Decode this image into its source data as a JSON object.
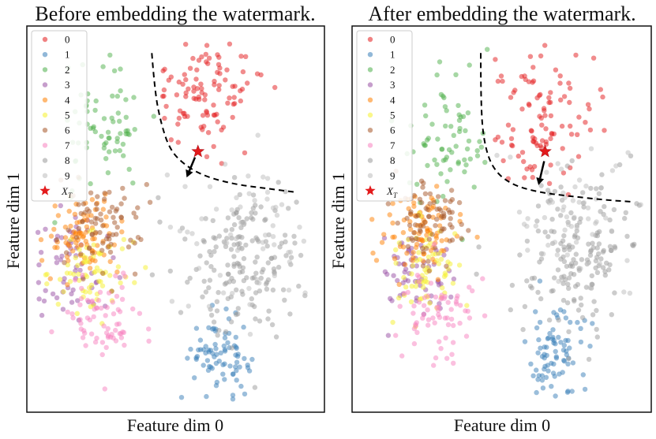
{
  "chart_data": [
    {
      "type": "scatter",
      "title": "Before embedding the watermark.",
      "xlabel": "Feature dim 0",
      "ylabel": "Feature dim 1",
      "legend": {
        "placement": "top-left",
        "entries": [
          "0",
          "1",
          "2",
          "3",
          "4",
          "5",
          "6",
          "7",
          "8",
          "9"
        ],
        "marker_label": "X_T",
        "marker_label_main": "X",
        "marker_label_sub": "T"
      },
      "grid": false,
      "xlim": [
        0,
        100
      ],
      "ylim": [
        0,
        100
      ],
      "boundary": [
        [
          42,
          93
        ],
        [
          43,
          83
        ],
        [
          45,
          75
        ],
        [
          48,
          68
        ],
        [
          53,
          64
        ],
        [
          60,
          61
        ],
        [
          70,
          59
        ],
        [
          80,
          58
        ],
        [
          90,
          57
        ]
      ],
      "watermark_point": [
        57.5,
        67.5
      ],
      "arrow": {
        "from": [
          56.5,
          66.0
        ],
        "to": [
          53.7,
          60.8
        ]
      },
      "series": [
        {
          "label": "0",
          "color": "#e41a1c",
          "center": [
            60,
            83
          ],
          "spread": [
            10,
            7
          ],
          "n": 100,
          "region": "right_of_boundary"
        },
        {
          "label": "1",
          "color": "#377eb8",
          "center": [
            65,
            14
          ],
          "spread": [
            5,
            5
          ],
          "n": 80
        },
        {
          "label": "2",
          "color": "#4daf4a",
          "center": [
            25,
            72
          ],
          "spread": [
            8,
            8
          ],
          "n": 70
        },
        {
          "label": "3",
          "color": "#984ea3",
          "center": [
            16,
            38
          ],
          "spread": [
            7,
            7
          ],
          "n": 60
        },
        {
          "label": "4",
          "color": "#ff7f00",
          "center": [
            19,
            46
          ],
          "spread": [
            6,
            5
          ],
          "n": 85
        },
        {
          "label": "5",
          "color": "#f5f02a",
          "center": [
            22,
            36
          ],
          "spread": [
            7,
            5
          ],
          "n": 65
        },
        {
          "label": "6",
          "color": "#a65628",
          "center": [
            25,
            49
          ],
          "spread": [
            7,
            6
          ],
          "n": 75
        },
        {
          "label": "7",
          "color": "#f781bf",
          "center": [
            26,
            24
          ],
          "spread": [
            7,
            6
          ],
          "n": 70
        },
        {
          "label": "8",
          "color": "#999999",
          "center": [
            74,
            40
          ],
          "spread": [
            10,
            10
          ],
          "n": 170
        },
        {
          "label": "9",
          "color": "#bcbcbc",
          "center": [
            72,
            45
          ],
          "spread": [
            10,
            10
          ],
          "n": 60
        }
      ]
    },
    {
      "type": "scatter",
      "title": "After embedding the watermark.",
      "xlabel": "Feature dim 0",
      "ylabel": "Feature dim 1",
      "legend": {
        "placement": "top-left",
        "entries": [
          "0",
          "1",
          "2",
          "3",
          "4",
          "5",
          "6",
          "7",
          "8",
          "9"
        ],
        "marker_label": "X_T",
        "marker_label_main": "X",
        "marker_label_sub": "T"
      },
      "grid": false,
      "xlim": [
        0,
        100
      ],
      "ylim": [
        0,
        100
      ],
      "boundary": [
        [
          43,
          93
        ],
        [
          43,
          80
        ],
        [
          44,
          70
        ],
        [
          47,
          63
        ],
        [
          53,
          59
        ],
        [
          62,
          57
        ],
        [
          72,
          56
        ],
        [
          84,
          55
        ],
        [
          93,
          54.5
        ]
      ],
      "watermark_point": [
        64.5,
        67.5
      ],
      "arrow": {
        "from": [
          64.2,
          65.0
        ],
        "to": [
          62.3,
          58.8
        ]
      },
      "series": [
        {
          "label": "0",
          "color": "#e41a1c",
          "center": [
            63,
            77
          ],
          "spread": [
            9,
            9
          ],
          "n": 100,
          "region": "right_of_boundary"
        },
        {
          "label": "1",
          "color": "#377eb8",
          "center": [
            68,
            15
          ],
          "spread": [
            5,
            6
          ],
          "n": 80
        },
        {
          "label": "2",
          "color": "#4daf4a",
          "center": [
            31,
            72
          ],
          "spread": [
            7,
            9
          ],
          "n": 70
        },
        {
          "label": "3",
          "color": "#984ea3",
          "center": [
            21,
            37
          ],
          "spread": [
            6,
            7
          ],
          "n": 60
        },
        {
          "label": "4",
          "color": "#ff7f00",
          "center": [
            23,
            47
          ],
          "spread": [
            6,
            5
          ],
          "n": 85
        },
        {
          "label": "5",
          "color": "#f5f02a",
          "center": [
            26,
            36
          ],
          "spread": [
            6,
            6
          ],
          "n": 65
        },
        {
          "label": "6",
          "color": "#a65628",
          "center": [
            27,
            50
          ],
          "spread": [
            6,
            6
          ],
          "n": 75
        },
        {
          "label": "7",
          "color": "#f781bf",
          "center": [
            28,
            24
          ],
          "spread": [
            6,
            6
          ],
          "n": 70
        },
        {
          "label": "8",
          "color": "#999999",
          "center": [
            76,
            42
          ],
          "spread": [
            10,
            10
          ],
          "n": 170
        },
        {
          "label": "9",
          "color": "#bcbcbc",
          "center": [
            73,
            48
          ],
          "spread": [
            10,
            10
          ],
          "n": 60
        }
      ]
    }
  ]
}
